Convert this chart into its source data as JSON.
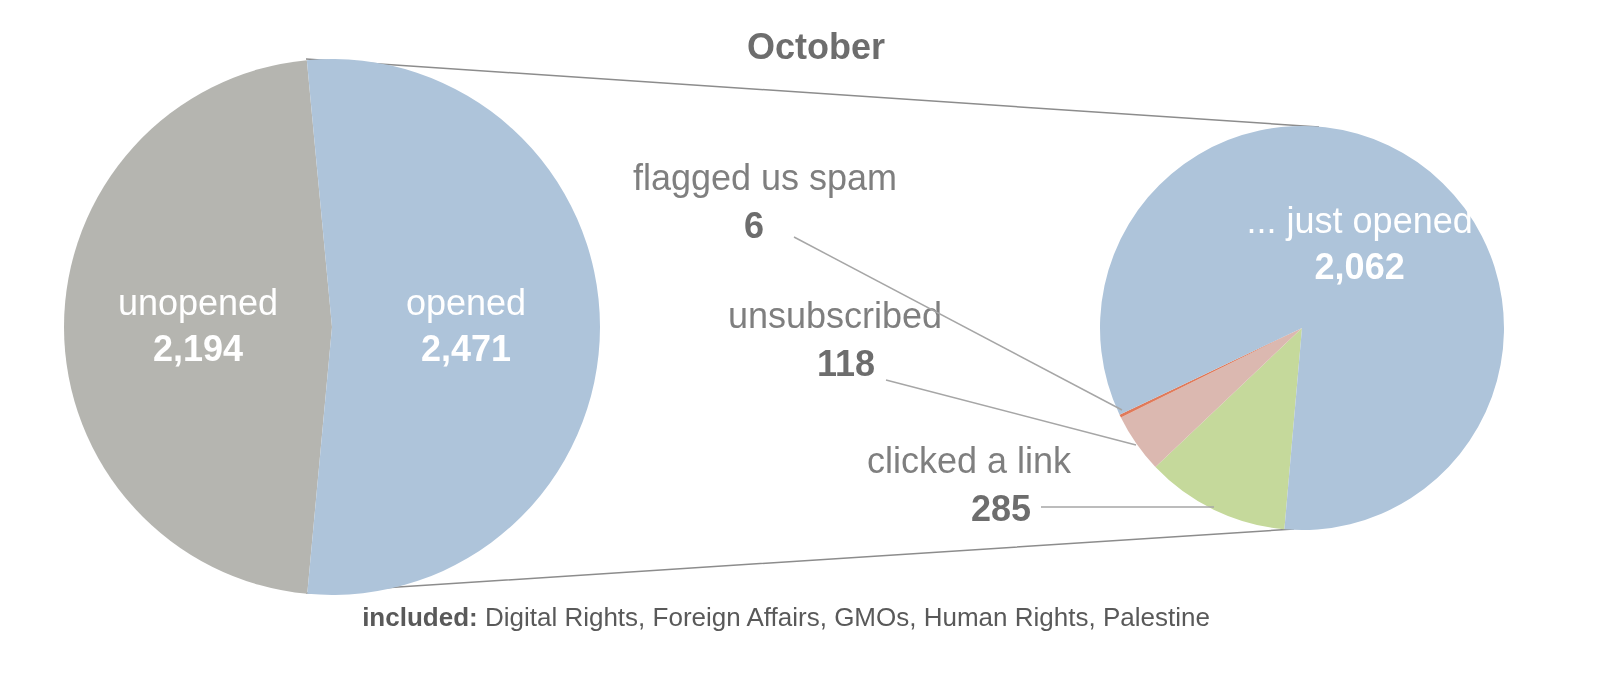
{
  "chart_data": [
    {
      "type": "pie",
      "title": "October",
      "categories": [
        "unopened",
        "opened"
      ],
      "values": [
        2194,
        2471
      ],
      "colors": [
        "#b5b5b0",
        "#aec4da"
      ],
      "value_labels": [
        "2,194",
        "2,471"
      ]
    },
    {
      "type": "pie",
      "categories": [
        "clicked a link",
        "unsubscribed",
        "flagged us spam",
        "... just opened"
      ],
      "values": [
        285,
        118,
        6,
        2062
      ],
      "colors": [
        "#c5d99b",
        "#dbb8b0",
        "#e07a5a",
        "#aec4da"
      ],
      "value_labels": [
        "285",
        "118",
        "6",
        "2,062"
      ],
      "annotations": [
        "included: Digital Rights, Foreign Affairs, GMOs, Human Rights, Palestine"
      ]
    }
  ]
}
